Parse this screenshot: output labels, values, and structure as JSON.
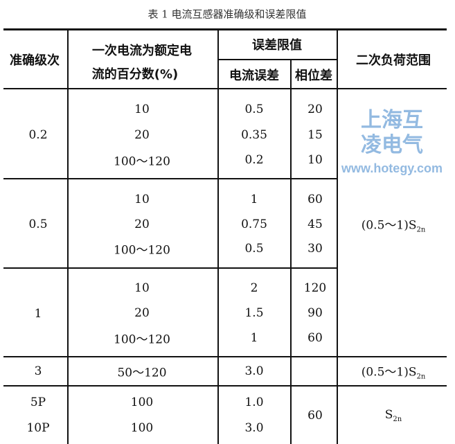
{
  "caption": "表 1  电流互感器准确级和误差限值",
  "header": {
    "class": "准确级次",
    "primary_line1": "一次电流为额定电",
    "primary_line2": "流的百分数(%)",
    "error_limits": "误差限值",
    "current_error": "电流误差",
    "phase_error": "相位差",
    "burden": "二次负荷范围"
  },
  "rows": [
    {
      "class": "0.2",
      "primary": [
        "10",
        "20",
        "100～120"
      ],
      "current": [
        "0.5",
        "0.35",
        "0.2"
      ],
      "phase": [
        "20",
        "15",
        "10"
      ]
    },
    {
      "class": "0.5",
      "primary": [
        "10",
        "20",
        "100～120"
      ],
      "current": [
        "1",
        "0.75",
        "0.5"
      ],
      "phase": [
        "60",
        "45",
        "30"
      ]
    },
    {
      "class": "1",
      "primary": [
        "10",
        "20",
        "100～120"
      ],
      "current": [
        "2",
        "1.5",
        "1"
      ],
      "phase": [
        "120",
        "90",
        "60"
      ]
    },
    {
      "class": "3",
      "primary": [
        "50～120"
      ],
      "current": [
        "3.0"
      ],
      "phase": []
    },
    {
      "class": [
        "5P",
        "10P"
      ],
      "primary": [
        "100",
        "100"
      ],
      "current": [
        "1.0",
        "3.0"
      ],
      "phase": [
        "60"
      ]
    }
  ],
  "burden_values": {
    "main": "(0.5～1)S",
    "class3": "(0.5～1)S",
    "protective": "S",
    "subscript": "2n"
  },
  "watermark": {
    "name": "上海互凌电气",
    "url": "www.hotegy.com"
  }
}
